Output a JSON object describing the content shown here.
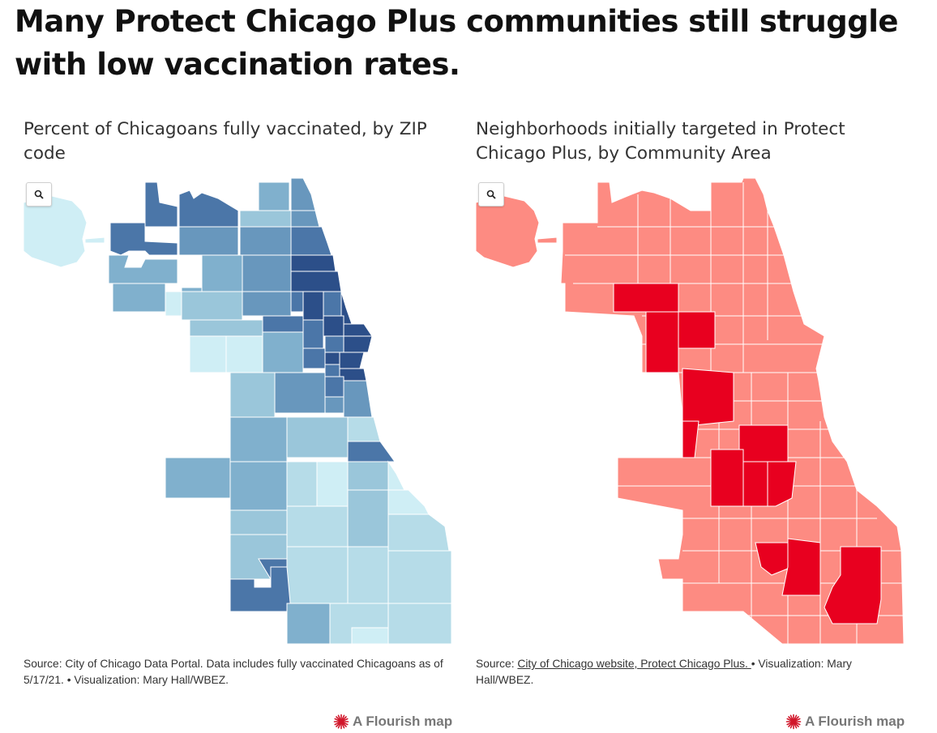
{
  "title": "Many Protect Chicago Plus communities still struggle with low vaccination rates.",
  "colors": {
    "vax_scale": [
      "#cfeef5",
      "#b6dce8",
      "#9ac6da",
      "#80b0cd",
      "#6897bd",
      "#4b76a8",
      "#2c4f89"
    ],
    "target_highlight": "#e8001f",
    "target_base": "#fd8b82",
    "boundary": "#ffffff"
  },
  "left_map": {
    "subtitle": "Percent of Chicagoans fully vaccinated, by ZIP code",
    "zoom_icon": "search-icon",
    "source_prefix": "Source: City of Chicago Data Portal. Data includes fully vaccinated Chicagoans as of 5/17/21. • Visualization: Mary Hall/WBEZ.",
    "credit": "A Flourish map",
    "credit_icon": "flourish-logo-icon"
  },
  "right_map": {
    "subtitle": "Neighborhoods initially targeted in Protect Chicago Plus, by Community Area",
    "zoom_icon": "search-icon",
    "source_prefix": "Source: ",
    "source_link": "City of Chicago website, Protect Chicago Plus. ",
    "source_suffix": "• Visualization: Mary Hall/WBEZ.",
    "credit": "A Flourish map",
    "credit_icon": "flourish-logo-icon"
  }
}
